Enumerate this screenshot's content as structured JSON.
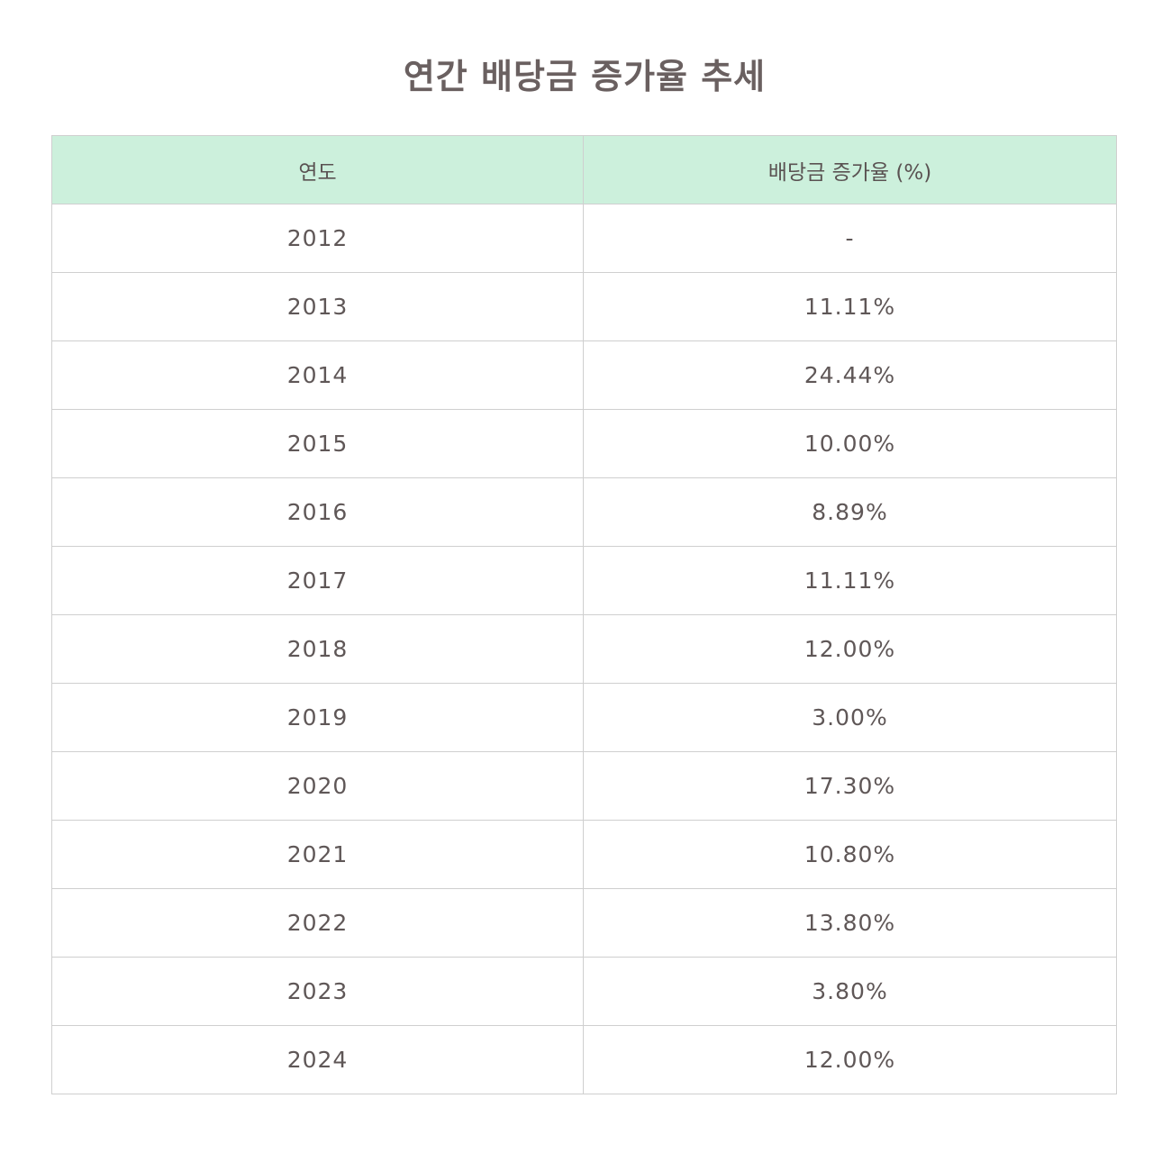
{
  "title": "연간 배당금 증가율 추세",
  "table": {
    "headers": [
      "연도",
      "배당금 증가율 (%)"
    ],
    "rows": [
      {
        "year": "2012",
        "rate": "-"
      },
      {
        "year": "2013",
        "rate": "11.11%"
      },
      {
        "year": "2014",
        "rate": "24.44%"
      },
      {
        "year": "2015",
        "rate": "10.00%"
      },
      {
        "year": "2016",
        "rate": "8.89%"
      },
      {
        "year": "2017",
        "rate": "11.11%"
      },
      {
        "year": "2018",
        "rate": "12.00%"
      },
      {
        "year": "2019",
        "rate": "3.00%"
      },
      {
        "year": "2020",
        "rate": "17.30%"
      },
      {
        "year": "2021",
        "rate": "10.80%"
      },
      {
        "year": "2022",
        "rate": "13.80%"
      },
      {
        "year": "2023",
        "rate": "3.80%"
      },
      {
        "year": "2024",
        "rate": "12.00%"
      }
    ]
  },
  "colors": {
    "header_bg": "#ccf0dc",
    "text": "#5f5757",
    "border": "#cfcfcf"
  }
}
